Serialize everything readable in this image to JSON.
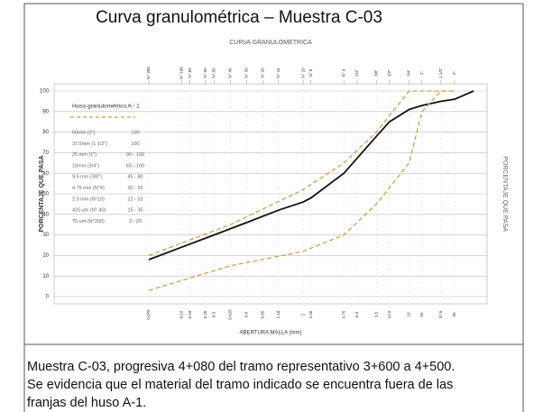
{
  "chart_data": {
    "type": "line",
    "title": "Curva granulométrica – Muestra C-03",
    "subtitle": "CURVA GRANULOMETRICA",
    "ylabel": "PORCENTAJE QUE PASA",
    "y2label": "PORCENTAJE QUE PASA",
    "xlabel": "ABERTURA MALLA (mm)",
    "xscale": "log",
    "xlim": [
      0.01,
      100
    ],
    "ylim": [
      0,
      100
    ],
    "yticks": [
      0,
      10,
      20,
      30,
      40,
      50,
      60,
      70,
      80,
      90,
      100
    ],
    "xticks": [
      0.075,
      0.15,
      0.18,
      0.25,
      0.3,
      0.425,
      0.6,
      0.85,
      1.18,
      2,
      2.36,
      4.75,
      6.3,
      9.5,
      12.5,
      19,
      25,
      37.5,
      50
    ],
    "x2ticks": [
      {
        "value": 0.075,
        "label": "N° 200"
      },
      {
        "value": 0.15,
        "label": "N° 100"
      },
      {
        "value": 0.18,
        "label": "N° 80"
      },
      {
        "value": 0.25,
        "label": "N° 60"
      },
      {
        "value": 0.3,
        "label": "N° 50"
      },
      {
        "value": 0.425,
        "label": "N° 40"
      },
      {
        "value": 0.6,
        "label": "N° 30"
      },
      {
        "value": 0.85,
        "label": "N° 20"
      },
      {
        "value": 1.18,
        "label": "N° 16"
      },
      {
        "value": 2,
        "label": "N° 10"
      },
      {
        "value": 2.36,
        "label": "N° 8"
      },
      {
        "value": 4.75,
        "label": "N° 4"
      },
      {
        "value": 6.3,
        "label": "1/4\""
      },
      {
        "value": 9.5,
        "label": "3/8\""
      },
      {
        "value": 12.5,
        "label": "1/2\""
      },
      {
        "value": 19,
        "label": "3/4\""
      },
      {
        "value": 25,
        "label": "1\""
      },
      {
        "value": 37.5,
        "label": "1 1/2\""
      },
      {
        "value": 50,
        "label": "2\""
      }
    ],
    "grid": true,
    "series": [
      {
        "color": "#111111",
        "dash": false,
        "x": [
          0.075,
          0.15,
          0.3,
          0.6,
          1.18,
          2,
          2.36,
          4.75,
          9.5,
          12.5,
          19,
          25,
          37.5,
          50,
          75
        ],
        "values": [
          18,
          24,
          30,
          36,
          42,
          46,
          48,
          60,
          78,
          85,
          91,
          93,
          95,
          96,
          100
        ]
      },
      {
        "color": "#c9a24a",
        "dash": true,
        "x": [
          0.075,
          0.425,
          2,
          4.75,
          9.5,
          19,
          25,
          37.5,
          50
        ],
        "values": [
          20,
          35,
          52,
          65,
          80,
          100,
          100,
          100,
          100
        ]
      },
      {
        "color": "#c9a24a",
        "dash": true,
        "x": [
          0.075,
          0.425,
          2,
          4.75,
          9.5,
          19,
          25,
          37.5,
          50
        ],
        "values": [
          3,
          15,
          22,
          30,
          45,
          65,
          90,
          100,
          100
        ]
      }
    ],
    "legend": {
      "title": "Huso granulométrico A - 1",
      "rows": [
        [
          "50mm (2\")",
          "100"
        ],
        [
          "37.5mm (1 1/2\")",
          "100"
        ],
        [
          "25 mm (1\")",
          "90 - 100"
        ],
        [
          "19mm (3/4\")",
          "65 - 100"
        ],
        [
          "9.5 mm (3/8\")",
          "45 - 80"
        ],
        [
          "4.75 mm (N°4)",
          "30 - 65"
        ],
        [
          "2.0 mm (N°10)",
          "22 - 52"
        ],
        [
          "425 um (N° 40)",
          "15 - 35"
        ],
        [
          "75 um (N°200)",
          "3 - 20"
        ]
      ]
    }
  },
  "caption": [
    "Muestra C-03, progresiva 4+080 del tramo representativo 3+600 a 4+500.",
    "Se evidencia que el material del tramo indicado se encuentra fuera de las",
    "franjas del huso A-1."
  ]
}
